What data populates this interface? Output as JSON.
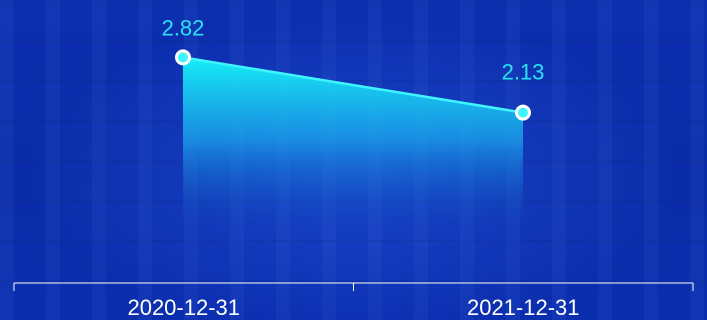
{
  "colors": {
    "background": "#0b2fae",
    "line": "#3ff3ff",
    "label": "#29e3f2",
    "axis": "#ffffff",
    "area_top": "#16f0f6",
    "area_bottom": "#0b2fae"
  },
  "chart_data": {
    "type": "area",
    "title": "",
    "xlabel": "",
    "ylabel": "",
    "categories": [
      "2020-12-31",
      "2021-12-31"
    ],
    "series": [
      {
        "values": [
          2.82,
          2.13
        ]
      }
    ],
    "data_labels": [
      "2.82",
      "2.13"
    ],
    "ylim": [
      0,
      3
    ],
    "grid": false,
    "legend": "none"
  }
}
